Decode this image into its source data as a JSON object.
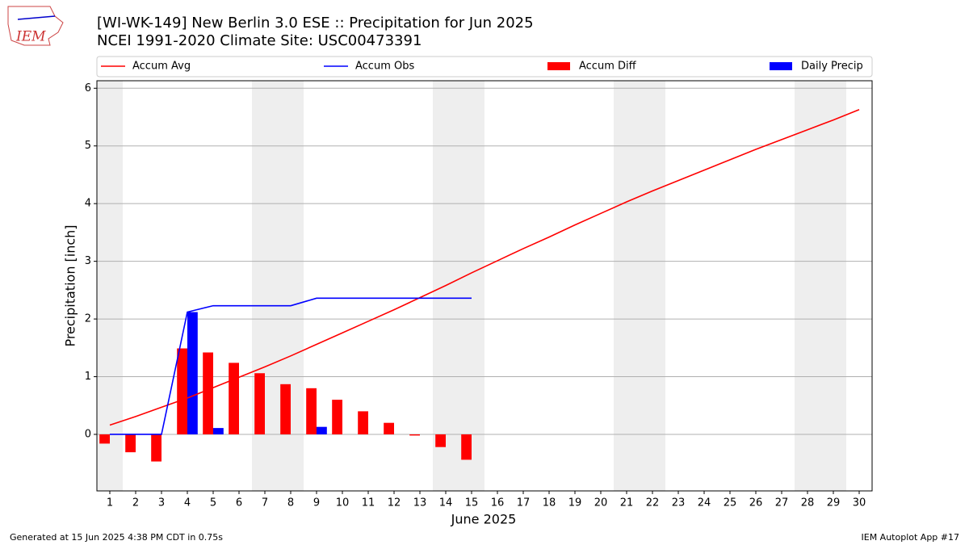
{
  "chart_data": {
    "type": "combo",
    "title": "[WI-WK-149] New Berlin 3.0 ESE :: Precipitation for Jun 2025",
    "subtitle": "NCEI 1991-2020 Climate Site: USC00473391",
    "x_label": "June 2025",
    "y_label": "Precipitation [inch]",
    "x": [
      1,
      2,
      3,
      4,
      5,
      6,
      7,
      8,
      9,
      10,
      11,
      12,
      13,
      14,
      15,
      16,
      17,
      18,
      19,
      20,
      21,
      22,
      23,
      24,
      25,
      26,
      27,
      28,
      29,
      30
    ],
    "xlim": [
      0.5,
      30.5
    ],
    "xticks": [
      1,
      2,
      3,
      4,
      5,
      6,
      7,
      8,
      9,
      10,
      11,
      12,
      13,
      14,
      15,
      16,
      17,
      18,
      19,
      20,
      21,
      22,
      23,
      24,
      25,
      26,
      27,
      28,
      29,
      30
    ],
    "ylim": [
      -0.98,
      6.13
    ],
    "yticks": [
      0,
      1,
      2,
      3,
      4,
      5,
      6
    ],
    "grid": true,
    "series": [
      {
        "name": "Accum Avg",
        "color": "#ff0000",
        "kind": "line",
        "values": [
          0.16,
          0.31,
          0.47,
          0.63,
          0.81,
          0.99,
          1.17,
          1.36,
          1.56,
          1.76,
          1.96,
          2.16,
          2.37,
          2.58,
          2.8,
          3.01,
          3.22,
          3.42,
          3.63,
          3.83,
          4.03,
          4.22,
          4.4,
          4.58,
          4.76,
          4.94,
          5.11,
          5.28,
          5.45,
          5.63
        ]
      },
      {
        "name": "Accum Obs",
        "color": "#0000ff",
        "kind": "line",
        "values": [
          0,
          0,
          0,
          2.12,
          2.23,
          2.23,
          2.23,
          2.23,
          2.36,
          2.36,
          2.36,
          2.36,
          2.36,
          2.36,
          2.36,
          null,
          null,
          null,
          null,
          null,
          null,
          null,
          null,
          null,
          null,
          null,
          null,
          null,
          null,
          null
        ]
      },
      {
        "name": "Accum Diff",
        "color": "#ff0000",
        "kind": "bar",
        "values": [
          -0.16,
          -0.31,
          -0.47,
          1.49,
          1.42,
          1.24,
          1.06,
          0.87,
          0.8,
          0.6,
          0.4,
          0.2,
          -0.02,
          -0.22,
          -0.44,
          null,
          null,
          null,
          null,
          null,
          null,
          null,
          null,
          null,
          null,
          null,
          null,
          null,
          null,
          null
        ]
      },
      {
        "name": "Daily Precip",
        "color": "#0000ff",
        "kind": "bar",
        "values": [
          0,
          0,
          0,
          2.12,
          0.11,
          0,
          0,
          0,
          0.13,
          0,
          0,
          0,
          0,
          0,
          0,
          null,
          null,
          null,
          null,
          null,
          null,
          null,
          null,
          null,
          null,
          null,
          null,
          null,
          null,
          null
        ]
      }
    ]
  },
  "logo": "IEM",
  "footer": {
    "left": "Generated at 15 Jun 2025 4:38 PM CDT in 0.75s",
    "right": "IEM Autoplot App #17"
  }
}
